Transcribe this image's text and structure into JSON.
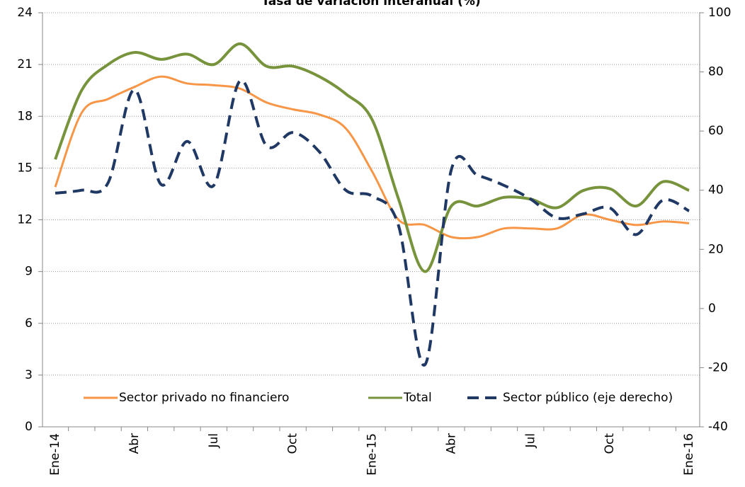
{
  "chart_data": {
    "type": "line",
    "title": "Tasa de variación interanual (%)",
    "categories": [
      "Ene-14",
      null,
      null,
      "Abr",
      null,
      null,
      "Jul",
      null,
      null,
      "Oct",
      null,
      null,
      "Ene-15",
      null,
      null,
      "Abr",
      null,
      null,
      "Jul",
      null,
      null,
      "Oct",
      null,
      null,
      "Ene-16"
    ],
    "series": [
      {
        "name": "Sector privado no financiero",
        "color": "#f79646",
        "values": [
          13.9,
          18.2,
          19.0,
          19.7,
          20.3,
          19.9,
          19.8,
          19.6,
          18.8,
          18.4,
          18.1,
          17.3,
          14.8,
          12.0,
          11.7,
          11.0,
          11.0,
          11.5,
          11.5,
          11.5,
          12.3,
          12.0,
          11.7,
          11.9,
          11.8
        ]
      },
      {
        "name": "Total",
        "color": "#77933c",
        "values": [
          15.5,
          19.5,
          21.0,
          21.7,
          21.3,
          21.6,
          21.0,
          22.2,
          20.9,
          20.9,
          20.3,
          19.3,
          17.8,
          13.2,
          9.0,
          12.8,
          12.8,
          13.3,
          13.2,
          12.7,
          13.7,
          13.8,
          12.8,
          14.2,
          13.7
        ]
      },
      {
        "name": "Sector público (eje derecho)",
        "color": "#1f3864",
        "axis": "y2",
        "dashed": true,
        "values": [
          39,
          40,
          42.5,
          74,
          42,
          56.5,
          41.6,
          77,
          55,
          59.5,
          53,
          40,
          38,
          28,
          -19,
          47,
          45,
          41.6,
          37,
          30.6,
          32,
          34,
          25,
          36.6,
          33
        ]
      }
    ],
    "ylim": [
      0,
      24
    ],
    "yticks": [
      0,
      3,
      6,
      9,
      12,
      15,
      18,
      21,
      24
    ],
    "y2lim": [
      -40,
      100
    ],
    "y2ticks": [
      -40,
      -20,
      0,
      20,
      40,
      60,
      80,
      100
    ],
    "grid": true,
    "legend": "bottom"
  }
}
